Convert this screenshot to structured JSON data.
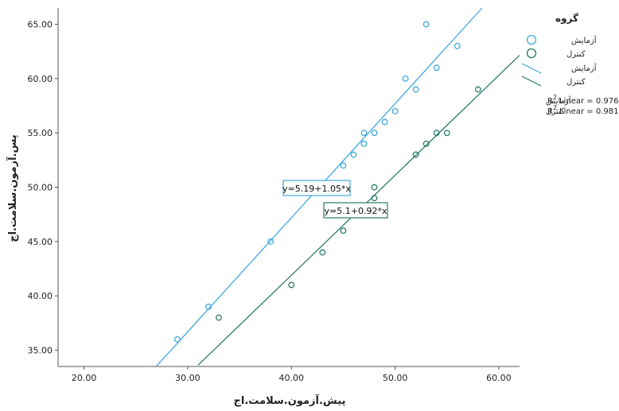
{
  "chart_data": {
    "type": "scatter",
    "xlabel": "پیش.آزمون.سلامت.اج",
    "ylabel": "پس.آزمون.سلامت.اج",
    "xlim": [
      17.5,
      62
    ],
    "ylim": [
      33.5,
      66.5
    ],
    "xticks": [
      "20.00",
      "30.00",
      "40.00",
      "50.00",
      "60.00"
    ],
    "xtick_values": [
      20,
      30,
      40,
      50,
      60
    ],
    "yticks": [
      "35.00",
      "40.00",
      "45.00",
      "50.00",
      "55.00",
      "60.00",
      "65.00"
    ],
    "ytick_values": [
      35,
      40,
      45,
      50,
      55,
      60,
      65
    ],
    "grid": false,
    "legend": {
      "title": "گروه",
      "position": "top-right",
      "marker_labels": [
        "آزمایش",
        "کنترل"
      ],
      "line_labels": [
        "آزمایش",
        "کنترل"
      ],
      "r2": [
        {
          "group": "آزمایش",
          "text": "Linear = 0.976",
          "prefix": "R",
          "sup": "2"
        },
        {
          "group": "کنترل",
          "text": "Linear = 0.981",
          "prefix": "R",
          "sup": "2"
        }
      ]
    },
    "series": [
      {
        "name": "آزمایش",
        "color": "#3fa9dd",
        "points": [
          [
            29,
            36
          ],
          [
            32,
            39
          ],
          [
            38,
            45
          ],
          [
            45,
            52
          ],
          [
            46,
            53
          ],
          [
            47,
            54
          ],
          [
            47,
            55
          ],
          [
            48,
            55
          ],
          [
            49,
            56
          ],
          [
            50,
            57
          ],
          [
            51,
            60
          ],
          [
            52,
            59
          ],
          [
            53,
            65
          ],
          [
            54,
            61
          ],
          [
            56,
            63
          ]
        ],
        "fit": {
          "intercept": 5.19,
          "slope": 1.05,
          "x_range": [
            27,
            61
          ],
          "equation": "y=5.19+1.05*x"
        }
      },
      {
        "name": "کنترل",
        "color": "#2a7a6a",
        "points": [
          [
            33,
            38
          ],
          [
            40,
            41
          ],
          [
            43,
            44
          ],
          [
            45,
            46
          ],
          [
            48,
            49
          ],
          [
            48,
            50
          ],
          [
            52,
            53
          ],
          [
            53,
            54
          ],
          [
            54,
            55
          ],
          [
            55,
            55
          ],
          [
            58,
            59
          ]
        ],
        "fit": {
          "intercept": 5.1,
          "slope": 0.92,
          "x_range": [
            31,
            62
          ],
          "equation": "y=5.1+0.92*x"
        }
      }
    ]
  }
}
